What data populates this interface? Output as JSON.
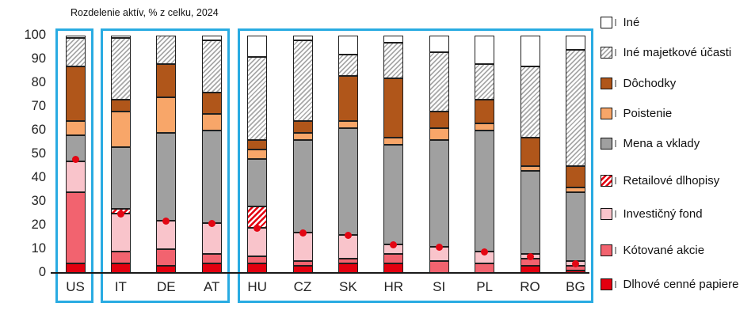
{
  "chart_data": {
    "type": "bar",
    "stacked": true,
    "title": "Rozdelenie aktív, % z celku, 2024",
    "categories": [
      "US",
      "IT",
      "DE",
      "AT",
      "HU",
      "CZ",
      "SK",
      "HR",
      "SI",
      "PL",
      "RO",
      "BG"
    ],
    "groups": [
      [
        "US"
      ],
      [
        "IT",
        "DE",
        "AT"
      ],
      [
        "HU",
        "CZ",
        "SK",
        "HR",
        "SI",
        "PL",
        "RO",
        "BG"
      ]
    ],
    "ylim": [
      0,
      100
    ],
    "yticks": [
      0,
      10,
      20,
      30,
      40,
      50,
      60,
      70,
      80,
      90,
      100
    ],
    "grid": false,
    "legend_position": "right",
    "series": [
      {
        "name": "Dlhové cenné papiere",
        "values": [
          4,
          4,
          3,
          4,
          4,
          3,
          4,
          4,
          0,
          0,
          3,
          1
        ]
      },
      {
        "name": "Kótované akcie",
        "values": [
          30,
          5,
          7,
          4,
          3,
          2,
          2,
          4,
          5,
          4,
          3,
          2
        ]
      },
      {
        "name": "Investičný fond",
        "values": [
          13,
          16,
          12,
          13,
          12,
          12,
          10,
          4,
          6,
          5,
          2,
          2
        ]
      },
      {
        "name": "Retailové dlhopisy",
        "values": [
          0,
          2,
          0,
          0,
          9,
          0,
          0,
          0,
          0,
          0,
          0,
          0
        ]
      },
      {
        "name": "Mena a vklady",
        "values": [
          11,
          26,
          37,
          39,
          20,
          39,
          45,
          42,
          45,
          51,
          35,
          29
        ]
      },
      {
        "name": "Poistenie",
        "values": [
          6,
          15,
          15,
          7,
          4,
          3,
          3,
          3,
          5,
          3,
          2,
          2
        ]
      },
      {
        "name": "Dôchodky",
        "values": [
          23,
          5,
          14,
          9,
          4,
          5,
          19,
          25,
          7,
          10,
          12,
          9
        ]
      },
      {
        "name": "Iné majetkové účasti",
        "values": [
          12,
          26,
          12,
          22,
          35,
          34,
          9,
          15,
          25,
          15,
          30,
          49
        ]
      },
      {
        "name": "Iné",
        "values": [
          1,
          1,
          0,
          2,
          9,
          2,
          8,
          3,
          7,
          12,
          13,
          6
        ]
      }
    ],
    "markers": {
      "name": "red-dot",
      "values": [
        48,
        25,
        22,
        21,
        19,
        17,
        16,
        12,
        11,
        9,
        7,
        4
      ]
    },
    "legend_items": [
      "Iné",
      "Iné majetkové účasti",
      "Dôchodky",
      "Poistenie",
      "Mena a vklady",
      "Retailové dlhopisy",
      "Investičný fond",
      "Kótované akcie",
      "Dlhové cenné papiere"
    ],
    "colors": {
      "Iné": "#ffffff",
      "Iné majetkové účasti": "hatch-gray",
      "Dôchodky": "#b0561a",
      "Poistenie": "#f8a669",
      "Mena a vklady": "#a0a0a0",
      "Retailové dlhopisy": "hatch-red",
      "Investičný fond": "#f9c4cb",
      "Kótované akcie": "#f2636f",
      "Dlhové cenné papiere": "#e3000f",
      "marker": "#e30613",
      "group_box": "#29abe2",
      "axis": "#1a1a1a"
    }
  }
}
